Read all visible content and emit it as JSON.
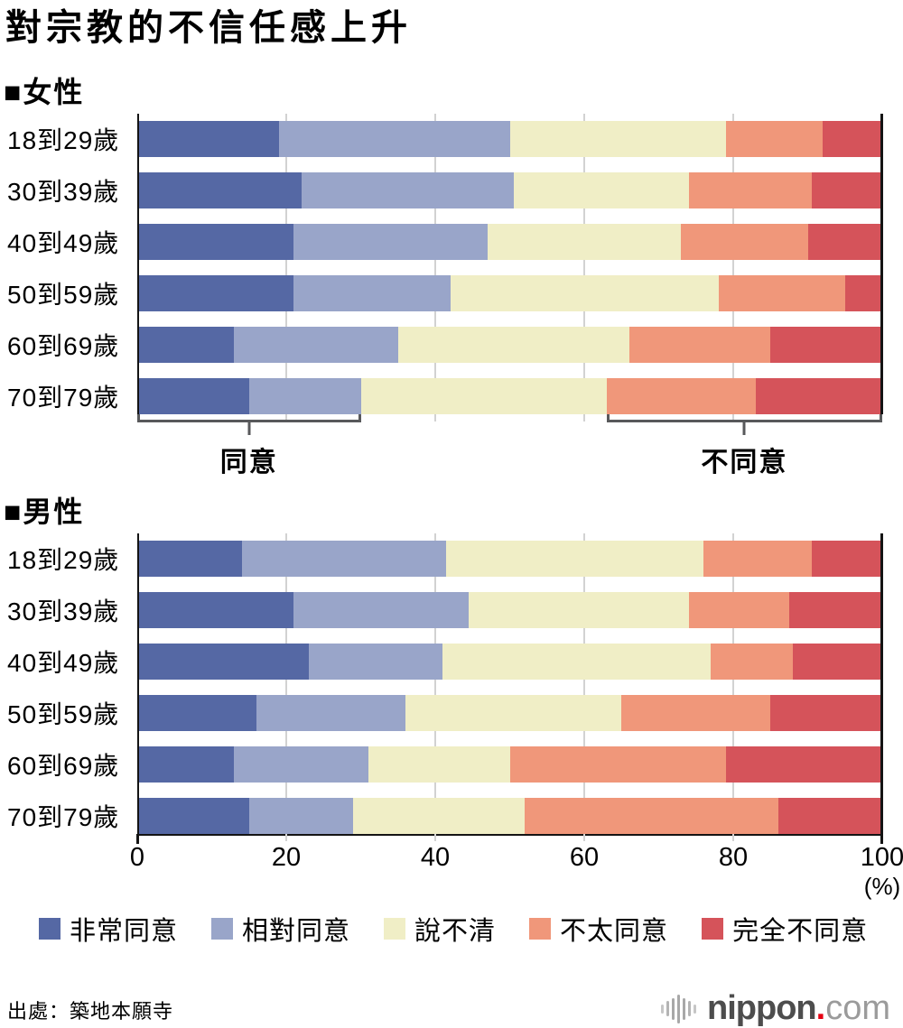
{
  "title": "對宗教的不信任感上升",
  "source": "出處：築地本願寺",
  "logo": {
    "brand": "nippon",
    "dot": ".",
    "suffix": "com",
    "icon": "waveform-icon",
    "dot_color": "#e60012"
  },
  "axis": {
    "ticks": [
      0,
      20,
      40,
      60,
      80,
      100
    ],
    "unit_label": "(%)"
  },
  "annotations": {
    "agree_label": "同意",
    "disagree_label": "不同意",
    "agree_span_pct": [
      0,
      30
    ],
    "disagree_span_pct": [
      63,
      100
    ]
  },
  "colors": {
    "strongly_agree": "#5568a4",
    "somewhat_agree": "#99a5c9",
    "unsure": "#f0eec6",
    "somewhat_disagree": "#f0977a",
    "strongly_disagree": "#d5535a",
    "bracket": "#58595b",
    "gridline": "#d2d2d2",
    "axis": "#141414"
  },
  "legend": [
    {
      "label": "非常同意",
      "color": "#5568a4"
    },
    {
      "label": "相對同意",
      "color": "#99a5c9"
    },
    {
      "label": "說不清",
      "color": "#f0eec6"
    },
    {
      "label": "不太同意",
      "color": "#f0977a"
    },
    {
      "label": "完全不同意",
      "color": "#d5535a"
    }
  ],
  "chart_data": [
    {
      "type": "bar",
      "stacked": true,
      "orientation": "horizontal",
      "title": "■女性",
      "xlim": [
        0,
        100
      ],
      "categories": [
        "18到29歲",
        "30到39歲",
        "40到49歲",
        "50到59歲",
        "60到69歲",
        "70到79歲"
      ],
      "series": [
        {
          "name": "非常同意",
          "color": "#5568a4",
          "values": [
            19,
            22,
            21,
            21,
            13,
            15
          ]
        },
        {
          "name": "相對同意",
          "color": "#99a5c9",
          "values": [
            31,
            28.5,
            26,
            21,
            22,
            15
          ]
        },
        {
          "name": "說不清",
          "color": "#f0eec6",
          "values": [
            29,
            23.5,
            26,
            36,
            31,
            33
          ]
        },
        {
          "name": "不太同意",
          "color": "#f0977a",
          "values": [
            13,
            16.5,
            17,
            17,
            19,
            20
          ]
        },
        {
          "name": "完全不同意",
          "color": "#d5535a",
          "values": [
            8,
            9.5,
            10,
            5,
            15,
            17
          ]
        }
      ]
    },
    {
      "type": "bar",
      "stacked": true,
      "orientation": "horizontal",
      "title": "■男性",
      "xlim": [
        0,
        100
      ],
      "categories": [
        "18到29歲",
        "30到39歲",
        "40到49歲",
        "50到59歲",
        "60到69歲",
        "70到79歲"
      ],
      "series": [
        {
          "name": "非常同意",
          "color": "#5568a4",
          "values": [
            14,
            21,
            23,
            16,
            13,
            15
          ]
        },
        {
          "name": "相對同意",
          "color": "#99a5c9",
          "values": [
            27.5,
            23.5,
            18,
            20,
            18,
            14
          ]
        },
        {
          "name": "說不清",
          "color": "#f0eec6",
          "values": [
            34.5,
            29.5,
            36,
            29,
            19,
            23
          ]
        },
        {
          "name": "不太同意",
          "color": "#f0977a",
          "values": [
            14.5,
            13.5,
            11,
            20,
            29,
            34
          ]
        },
        {
          "name": "完全不同意",
          "color": "#d5535a",
          "values": [
            9.5,
            12.5,
            12,
            15,
            21,
            14
          ]
        }
      ]
    }
  ]
}
